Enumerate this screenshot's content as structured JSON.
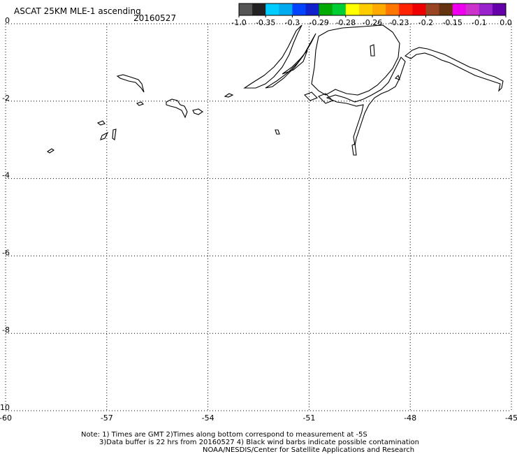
{
  "header": {
    "title": "ASCAT 25KM MLE-1 ascending",
    "date": "20160527"
  },
  "colorbar": {
    "colors": [
      "#555555",
      "#222222",
      "#00ccff",
      "#00aaee",
      "#0044ff",
      "#1122cc",
      "#00aa00",
      "#00cc33",
      "#ffff00",
      "#ffcc00",
      "#ffaa00",
      "#ff7700",
      "#ff2200",
      "#ee0000",
      "#994422",
      "#663311",
      "#ee00ee",
      "#cc33cc",
      "#9922cc",
      "#6600aa"
    ],
    "labels": [
      "-1.0",
      "-0.35",
      "-0.3",
      "-0.29",
      "-0.28",
      "-0.26",
      "-0.23",
      "-0.2",
      "-0.15",
      "-0.1",
      "0.0"
    ]
  },
  "map": {
    "lat_ticks": [
      "0",
      "-2",
      "-4",
      "-6",
      "-8",
      "-10"
    ],
    "lon_ticks": [
      "-60",
      "-57",
      "-54",
      "-51",
      "-48",
      "-45"
    ],
    "lon_range": [
      -60,
      -45
    ],
    "lat_range": [
      -10,
      0
    ],
    "grid": "dotted"
  },
  "notes": {
    "line1": "Note: 1) Times are GMT 2)Times along bottom correspond to measurement at -5S",
    "line2": "3)Data buffer is 22 hrs from 20160527 4) Black wind barbs indicate possible contamination",
    "line3": "NOAA/NESDIS/Center for Satellite Applications and Research"
  }
}
